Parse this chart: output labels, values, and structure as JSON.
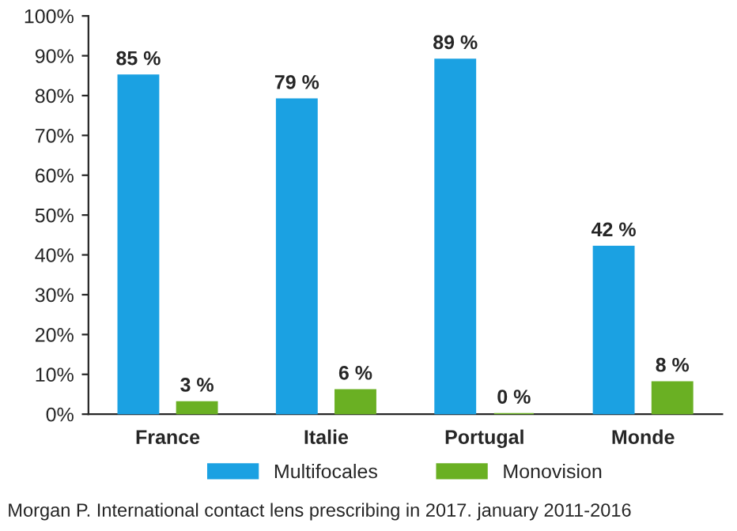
{
  "chart_data": {
    "type": "bar",
    "categories": [
      "France",
      "Italie",
      "Portugal",
      "Monde"
    ],
    "series": [
      {
        "name": "Multifocales",
        "color": "#1ba1e2",
        "values": [
          85,
          79,
          89,
          42
        ],
        "value_labels": [
          "85 %",
          "79 %",
          "89 %",
          "42 %"
        ]
      },
      {
        "name": "Monovision",
        "color": "#6ab023",
        "values": [
          3,
          6,
          0,
          8
        ],
        "value_labels": [
          "3 %",
          "6 %",
          "0 %",
          "8 %"
        ]
      }
    ],
    "ylim": [
      0,
      100
    ],
    "yticks": [
      {
        "value": 0,
        "label": "0%"
      },
      {
        "value": 10,
        "label": "10%"
      },
      {
        "value": 20,
        "label": "20%"
      },
      {
        "value": 30,
        "label": "30%"
      },
      {
        "value": 40,
        "label": "40%"
      },
      {
        "value": 50,
        "label": "50%"
      },
      {
        "value": 60,
        "label": "60%"
      },
      {
        "value": 70,
        "label": "70%"
      },
      {
        "value": 80,
        "label": "80%"
      },
      {
        "value": 90,
        "label": "90%"
      },
      {
        "value": 100,
        "label": "100%"
      }
    ],
    "grid": false,
    "legend": "bottom",
    "annotations": [
      "Morgan P. International contact lens prescribing in 2017. january 2011-2016"
    ]
  }
}
